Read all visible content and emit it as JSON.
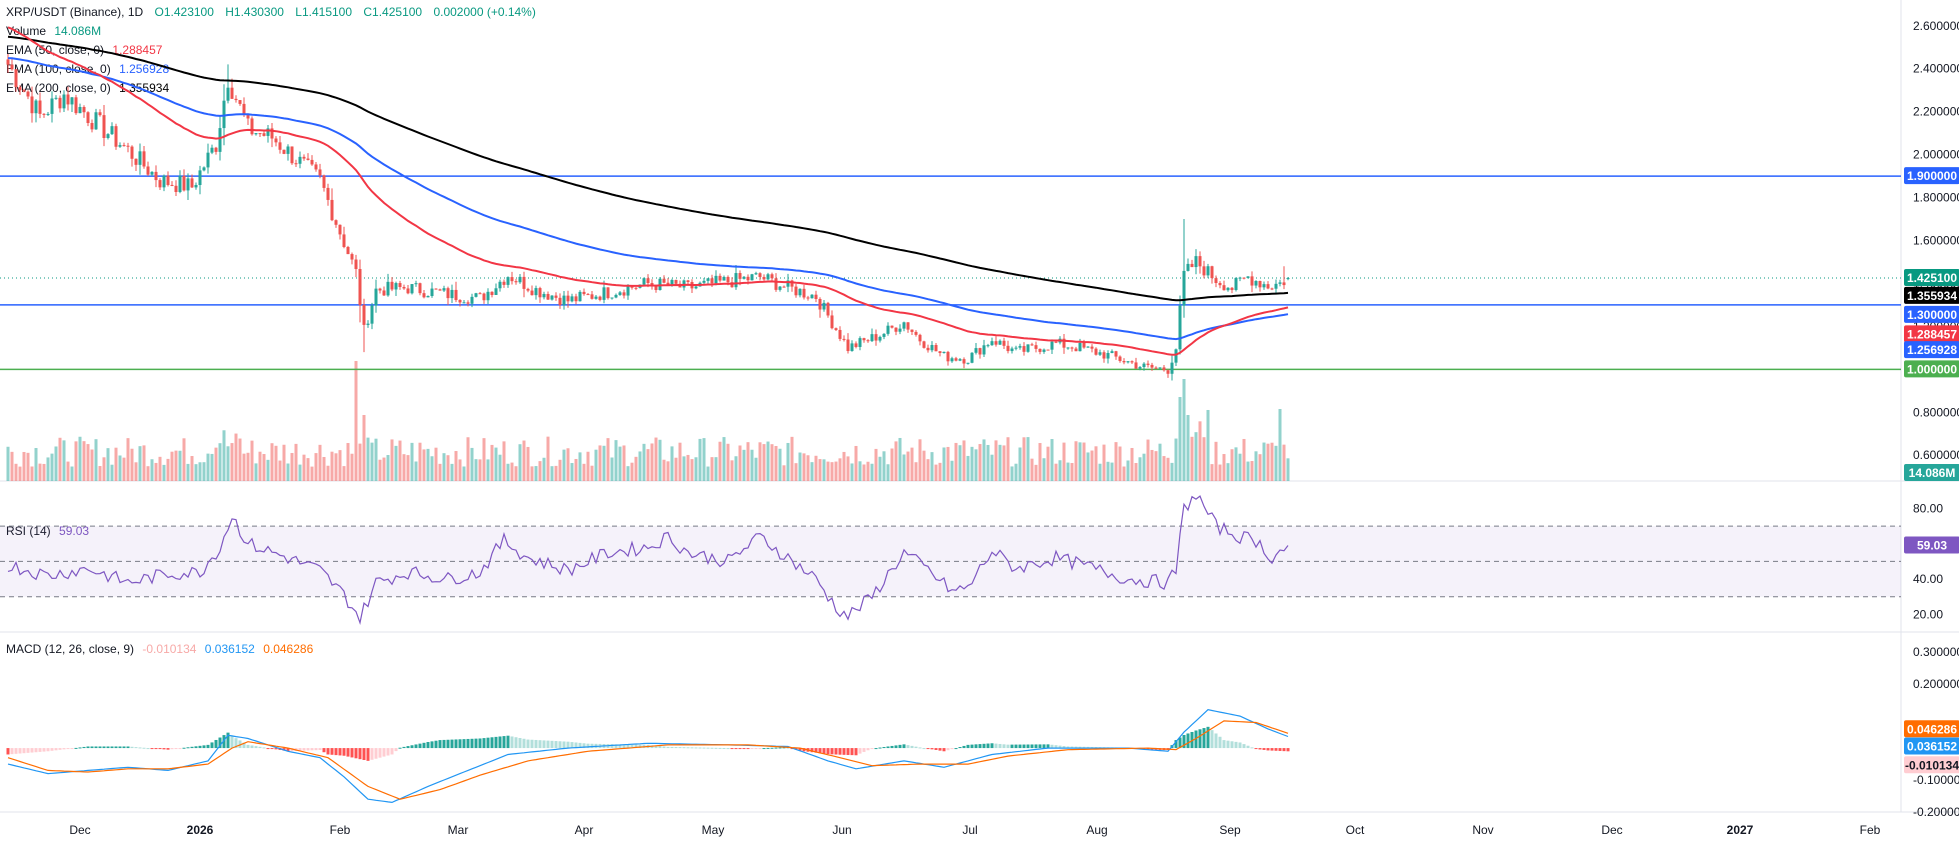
{
  "header": {
    "symbol": "XRP/USDT (Binance), 1D",
    "open": "O1.423100",
    "high": "H1.430300",
    "low": "L1.415100",
    "close": "C1.425100",
    "change": "0.002000 (+0.14%)"
  },
  "legend": {
    "volume_label": "Volume",
    "volume_value": "14.086M",
    "ema50_label": "EMA (50, close, 0)",
    "ema50_value": "1.288457",
    "ema100_label": "EMA (100, close, 0)",
    "ema100_value": "1.256928",
    "ema200_label": "EMA (200, close, 0)",
    "ema200_value": "1.355934",
    "rsi_label": "RSI (14)",
    "rsi_value": "59.03",
    "macd_label": "MACD (12, 26, close, 9)",
    "macd_hist": "-0.010134",
    "macd_line": "0.036152",
    "macd_signal": "0.046286"
  },
  "colors": {
    "up": "#26a69a",
    "down": "#ef5350",
    "ema50": "#f23645",
    "ema100": "#2962ff",
    "ema200": "#000000",
    "hline_blue": "#2962ff",
    "hline_green": "#4caf50",
    "rsi": "#7e57c2",
    "macd": "#2196f3",
    "signal": "#ff6d00"
  },
  "chart_data": [
    {
      "type": "candlestick",
      "panel": "price",
      "ylim": [
        0.48,
        2.72
      ],
      "y_ticks": [
        "2.600000",
        "2.400000",
        "2.200000",
        "2.000000",
        "1.800000",
        "1.600000",
        "1.400000",
        "1.200000",
        "1.000000",
        "0.800000",
        "0.600000"
      ],
      "x_ticks": [
        "Dec",
        "2026",
        "Feb",
        "Mar",
        "Apr",
        "May",
        "Jun",
        "Jul",
        "Aug",
        "Sep",
        "Oct",
        "Nov",
        "Dec",
        "2027",
        "Feb"
      ],
      "anchors": [
        [
          0,
          2.42
        ],
        [
          8,
          2.18
        ],
        [
          14,
          2.28
        ],
        [
          22,
          2.15
        ],
        [
          30,
          2.02
        ],
        [
          38,
          1.88
        ],
        [
          46,
          1.85
        ],
        [
          52,
          2.05
        ],
        [
          55,
          2.36
        ],
        [
          60,
          2.12
        ],
        [
          66,
          2.08
        ],
        [
          72,
          1.98
        ],
        [
          78,
          1.88
        ],
        [
          83,
          1.64
        ],
        [
          87,
          1.45
        ],
        [
          89,
          1.18
        ],
        [
          92,
          1.37
        ],
        [
          100,
          1.38
        ],
        [
          110,
          1.35
        ],
        [
          118,
          1.33
        ],
        [
          125,
          1.44
        ],
        [
          132,
          1.37
        ],
        [
          140,
          1.32
        ],
        [
          150,
          1.36
        ],
        [
          160,
          1.4
        ],
        [
          170,
          1.38
        ],
        [
          180,
          1.41
        ],
        [
          188,
          1.43
        ],
        [
          195,
          1.38
        ],
        [
          202,
          1.34
        ],
        [
          206,
          1.22
        ],
        [
          210,
          1.1
        ],
        [
          218,
          1.16
        ],
        [
          224,
          1.22
        ],
        [
          228,
          1.14
        ],
        [
          234,
          1.06
        ],
        [
          240,
          1.05
        ],
        [
          246,
          1.14
        ],
        [
          252,
          1.08
        ],
        [
          262,
          1.12
        ],
        [
          268,
          1.1
        ],
        [
          276,
          1.06
        ],
        [
          284,
          1.01
        ],
        [
          290,
          1.0
        ],
        [
          292,
          1.1
        ],
        [
          294,
          1.44
        ],
        [
          297,
          1.5
        ],
        [
          302,
          1.42
        ],
        [
          306,
          1.38
        ],
        [
          310,
          1.43
        ],
        [
          315,
          1.39
        ],
        [
          318,
          1.4
        ],
        [
          320,
          1.425
        ]
      ],
      "last_candle": {
        "open": 1.4231,
        "high": 1.4303,
        "low": 1.4151,
        "close": 1.4251
      },
      "series": [
        {
          "name": "EMA (50, close, 0)",
          "last": 1.288457
        },
        {
          "name": "EMA (100, close, 0)",
          "last": 1.256928
        },
        {
          "name": "EMA (200, close, 0)",
          "last": 1.355934
        }
      ],
      "horizontal_lines": [
        1.9,
        1.3,
        1.0
      ],
      "price_labels": [
        "1.900000",
        "1.425100",
        "1.355934",
        "1.300000",
        "1.288457",
        "1.256928",
        "1.000000"
      ]
    },
    {
      "type": "bar",
      "panel": "volume",
      "last": "14.086M",
      "spike_bars": [
        [
          87,
          1.0
        ],
        [
          89,
          0.55
        ],
        [
          293,
          0.7
        ],
        [
          294,
          0.85
        ],
        [
          295,
          0.55
        ],
        [
          318,
          0.6
        ]
      ]
    },
    {
      "type": "line",
      "panel": "rsi",
      "ylim": [
        10,
        95
      ],
      "y_ticks": [
        "80.00",
        "40.00",
        "20.00"
      ],
      "bands": [
        30,
        50,
        70
      ],
      "anchors": [
        [
          0,
          48
        ],
        [
          10,
          42
        ],
        [
          20,
          46
        ],
        [
          30,
          38
        ],
        [
          40,
          43
        ],
        [
          48,
          44
        ],
        [
          53,
          58
        ],
        [
          56,
          76
        ],
        [
          60,
          60
        ],
        [
          70,
          52
        ],
        [
          78,
          45
        ],
        [
          84,
          31
        ],
        [
          88,
          18
        ],
        [
          92,
          38
        ],
        [
          100,
          44
        ],
        [
          110,
          40
        ],
        [
          118,
          44
        ],
        [
          124,
          62
        ],
        [
          130,
          52
        ],
        [
          140,
          45
        ],
        [
          150,
          55
        ],
        [
          160,
          58
        ],
        [
          165,
          64
        ],
        [
          170,
          55
        ],
        [
          180,
          50
        ],
        [
          188,
          64
        ],
        [
          195,
          52
        ],
        [
          202,
          40
        ],
        [
          207,
          24
        ],
        [
          210,
          19
        ],
        [
          216,
          30
        ],
        [
          224,
          55
        ],
        [
          230,
          45
        ],
        [
          236,
          33
        ],
        [
          240,
          35
        ],
        [
          246,
          56
        ],
        [
          252,
          46
        ],
        [
          262,
          52
        ],
        [
          270,
          47
        ],
        [
          280,
          40
        ],
        [
          290,
          38
        ],
        [
          292,
          45
        ],
        [
          294,
          80
        ],
        [
          297,
          88
        ],
        [
          302,
          70
        ],
        [
          308,
          64
        ],
        [
          312,
          62
        ],
        [
          316,
          52
        ],
        [
          320,
          59.03
        ]
      ],
      "last": 59.03
    },
    {
      "type": "line",
      "panel": "macd",
      "ylim": [
        -0.2,
        0.36
      ],
      "y_ticks": [
        "0.300000",
        "0.200000",
        "-0.100000",
        "-0.200000"
      ],
      "macd_anchors": [
        [
          0,
          -0.05
        ],
        [
          10,
          -0.08
        ],
        [
          20,
          -0.07
        ],
        [
          30,
          -0.06
        ],
        [
          40,
          -0.07
        ],
        [
          50,
          -0.04
        ],
        [
          55,
          0.04
        ],
        [
          60,
          0.03
        ],
        [
          70,
          -0.01
        ],
        [
          78,
          -0.03
        ],
        [
          84,
          -0.09
        ],
        [
          90,
          -0.16
        ],
        [
          96,
          -0.17
        ],
        [
          105,
          -0.12
        ],
        [
          115,
          -0.07
        ],
        [
          125,
          -0.02
        ],
        [
          140,
          0.0
        ],
        [
          160,
          0.015
        ],
        [
          180,
          0.01
        ],
        [
          195,
          0.005
        ],
        [
          205,
          -0.04
        ],
        [
          212,
          -0.065
        ],
        [
          224,
          -0.04
        ],
        [
          234,
          -0.06
        ],
        [
          246,
          -0.02
        ],
        [
          260,
          0.0
        ],
        [
          280,
          0.0
        ],
        [
          290,
          -0.01
        ],
        [
          294,
          0.05
        ],
        [
          300,
          0.12
        ],
        [
          308,
          0.1
        ],
        [
          315,
          0.06
        ],
        [
          320,
          0.036152
        ]
      ],
      "signal_anchors": [
        [
          0,
          -0.03
        ],
        [
          10,
          -0.07
        ],
        [
          20,
          -0.075
        ],
        [
          30,
          -0.065
        ],
        [
          40,
          -0.065
        ],
        [
          50,
          -0.05
        ],
        [
          56,
          0.0
        ],
        [
          60,
          0.02
        ],
        [
          70,
          0.0
        ],
        [
          80,
          -0.03
        ],
        [
          90,
          -0.12
        ],
        [
          98,
          -0.16
        ],
        [
          108,
          -0.13
        ],
        [
          118,
          -0.085
        ],
        [
          130,
          -0.04
        ],
        [
          145,
          -0.01
        ],
        [
          165,
          0.01
        ],
        [
          185,
          0.01
        ],
        [
          198,
          0.0
        ],
        [
          208,
          -0.03
        ],
        [
          216,
          -0.055
        ],
        [
          228,
          -0.05
        ],
        [
          240,
          -0.05
        ],
        [
          250,
          -0.025
        ],
        [
          265,
          -0.005
        ],
        [
          285,
          0.0
        ],
        [
          292,
          -0.005
        ],
        [
          297,
          0.03
        ],
        [
          304,
          0.085
        ],
        [
          312,
          0.08
        ],
        [
          320,
          0.046286
        ]
      ],
      "last_macd": 0.036152,
      "last_signal": 0.046286,
      "last_hist": -0.010134
    }
  ]
}
